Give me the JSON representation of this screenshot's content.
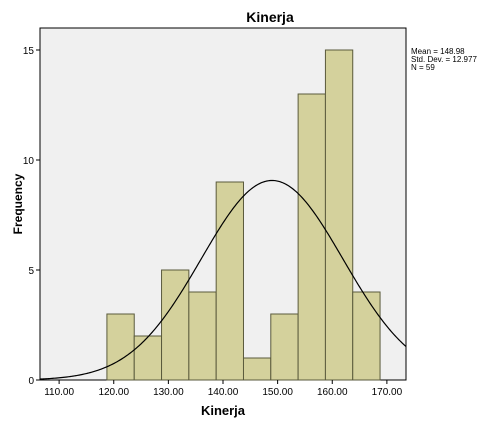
{
  "chart_data": {
    "type": "bar",
    "title": "Kinerja",
    "xlabel": "Kinerja",
    "ylabel": "Frequency",
    "bin_starts": [
      118.75,
      123.75,
      128.75,
      133.75,
      138.75,
      143.75,
      148.75,
      153.75,
      158.75,
      163.75
    ],
    "bin_width": 5,
    "values": [
      3,
      2,
      5,
      4,
      9,
      1,
      3,
      13,
      15,
      4
    ],
    "xlim": [
      106.5,
      173.5
    ],
    "ylim": [
      0,
      16
    ],
    "xticks": [
      110,
      120,
      130,
      140,
      150,
      160,
      170
    ],
    "xtick_labels": [
      "110.00",
      "120.00",
      "130.00",
      "140.00",
      "150.00",
      "160.00",
      "170.00"
    ],
    "yticks": [
      0,
      5,
      10,
      15
    ],
    "ytick_labels": [
      "0",
      "5",
      "10",
      "15"
    ],
    "normal_curve": {
      "mean": 148.98,
      "std_dev": 12.977,
      "n": 59
    },
    "stats_text": [
      "Mean = 148.98",
      "Std. Dev. = 12.977",
      "N = 59"
    ],
    "bar_fill": "#d4d19c",
    "bar_stroke": "#5a5a3c",
    "plot_background": "#f0f0f0",
    "grid": false
  }
}
